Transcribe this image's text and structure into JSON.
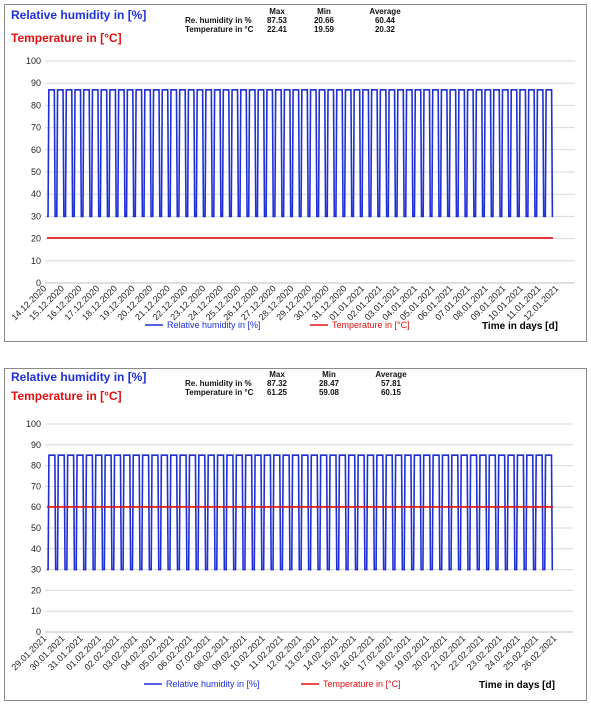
{
  "colors": {
    "humidity": "#1f2fd6",
    "temperature": "#e01010",
    "grid": "#d9d9d9"
  },
  "chart_data": [
    {
      "type": "line",
      "legend_title_humidity": "Relative humidity in [%]",
      "legend_title_temperature": "Temperature in [°C]",
      "stats": {
        "headers": [
          "Max",
          "Min",
          "Average"
        ],
        "rows": [
          {
            "label": "Re. humidity in %",
            "values": [
              "87.53",
              "20.66",
              "60.44"
            ]
          },
          {
            "label": "Temperature in °C",
            "values": [
              "22.41",
              "19.59",
              "20.32"
            ]
          }
        ]
      },
      "xlabel": "Time in days [d]",
      "x_ticks": [
        "14.12.2020",
        "15.12.2020",
        "16.12.2020",
        "17.12.2020",
        "18.12.2020",
        "19.12.2020",
        "20.12.2020",
        "21.12.2020",
        "22.12.2020",
        "23.12.2020",
        "24.12.2020",
        "25.12.2020",
        "26.12.2020",
        "27.12.2020",
        "28.12.2020",
        "29.12.2020",
        "30.12.2020",
        "31.12.2020",
        "01.01.2021",
        "02.01.2021",
        "03.01.2021",
        "04.01.2021",
        "05.01.2021",
        "06.01.2021",
        "07.01.2021",
        "08.01.2021",
        "09.01.2021",
        "10.01.2021",
        "11.01.2021",
        "12.01.2021"
      ],
      "ylim": [
        0,
        100
      ],
      "yticks": [
        0,
        10,
        20,
        30,
        40,
        50,
        60,
        70,
        80,
        90,
        100
      ],
      "humidity_cycle": {
        "high": 87,
        "low": 30,
        "cycles": 58,
        "duty": 0.72
      },
      "temperature_level": 20.3,
      "series": [
        {
          "name": "Relative humidity in [%]",
          "color": "#1f2fd6"
        },
        {
          "name": "Temperature in [°C]",
          "color": "#e01010"
        }
      ]
    },
    {
      "type": "line",
      "legend_title_humidity": "Relative humidity in [%]",
      "legend_title_temperature": "Temperature in [°C]",
      "stats": {
        "headers": [
          "Max",
          "Min",
          "Average"
        ],
        "rows": [
          {
            "label": "Re. humidity in %",
            "values": [
              "87.32",
              "28.47",
              "57.81"
            ]
          },
          {
            "label": "Temperature in °C",
            "values": [
              "61.25",
              "59.08",
              "60.15"
            ]
          }
        ]
      },
      "xlabel": "Time in days [d]",
      "x_ticks": [
        "29.01.2021",
        "30.01.2021",
        "31.01.2021",
        "01.02.2021",
        "02.02.2021",
        "03.02.2021",
        "04.02.2021",
        "05.02.2021",
        "06.02.2021",
        "07.02.2021",
        "08.02.2021",
        "09.02.2021",
        "10.02.2021",
        "11.02.2021",
        "12.02.2021",
        "13.02.2021",
        "14.02.2021",
        "15.02.2021",
        "16.02.2021",
        "17.02.2021",
        "18.02.2021",
        "19.02.2021",
        "20.02.2021",
        "21.02.2021",
        "22.02.2021",
        "23.02.2021",
        "24.02.2021",
        "25.02.2021",
        "26.02.2021"
      ],
      "ylim": [
        0,
        100
      ],
      "yticks": [
        0,
        10,
        20,
        30,
        40,
        50,
        60,
        70,
        80,
        90,
        100
      ],
      "humidity_cycle": {
        "high": 85,
        "low": 30,
        "cycles": 54,
        "duty": 0.72
      },
      "temperature_level": 60.15,
      "series": [
        {
          "name": "Relative humidity in [%]",
          "color": "#1f2fd6"
        },
        {
          "name": "Temperature in [°C]",
          "color": "#e01010"
        }
      ]
    }
  ]
}
